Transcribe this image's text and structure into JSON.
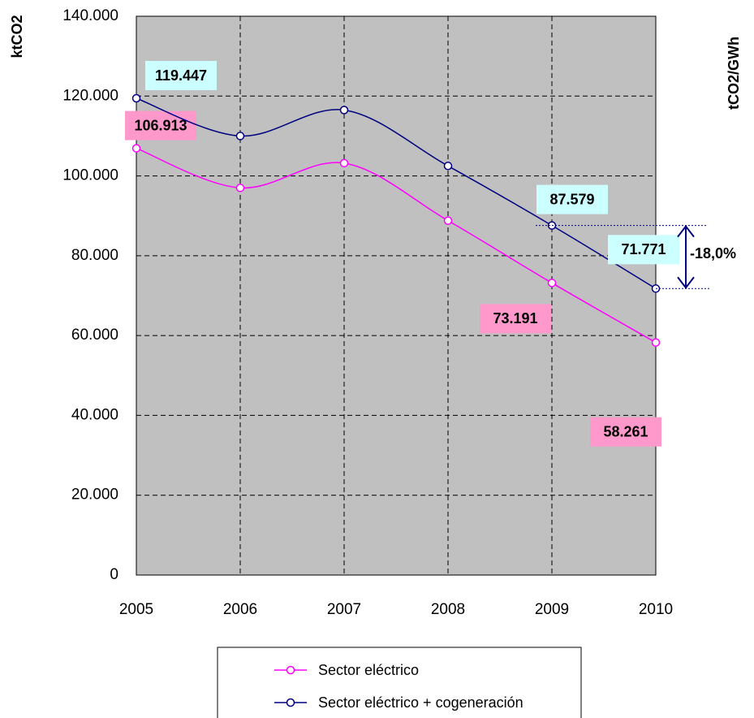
{
  "chart_data": {
    "type": "line",
    "y_label": "ktCO2",
    "y2_label": "tCO2/GWh",
    "annotation": "-18,0%",
    "categories": [
      "2005",
      "2006",
      "2007",
      "2008",
      "2009",
      "2010"
    ],
    "series": [
      {
        "name": "Sector eléctrico",
        "color": "#ff00ff",
        "values": [
          106913,
          97000,
          103200,
          88800,
          73191,
          58261
        ],
        "value_labels": [
          "106.913",
          null,
          null,
          null,
          "73.191",
          "58.261"
        ]
      },
      {
        "name": "Sector eléctrico + cogeneración",
        "color": "#000080",
        "values": [
          119447,
          110000,
          116500,
          102500,
          87579,
          71771
        ],
        "value_labels": [
          "119.447",
          null,
          null,
          null,
          "87.579",
          "71.771"
        ]
      }
    ],
    "ylim": [
      0,
      140000
    ],
    "yticks": [
      0,
      {
        "value": 20000,
        "label": "20.000"
      },
      {
        "value": 40000,
        "label": "40.000"
      },
      {
        "value": 60000,
        "label": "60.000"
      },
      {
        "value": 80000,
        "label": "80.000"
      },
      {
        "value": 100000,
        "label": "100.000"
      },
      {
        "value": 120000,
        "label": "120.000"
      },
      {
        "value": 140000,
        "label": "140.000"
      }
    ],
    "grid": true,
    "plot_background": "#c0c0c0"
  }
}
